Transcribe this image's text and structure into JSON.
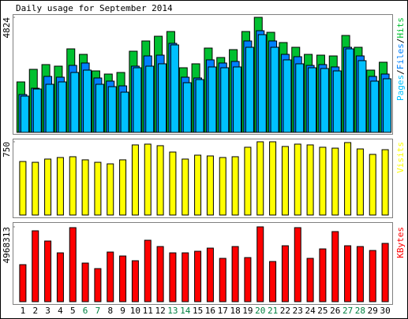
{
  "chart_data": [
    {
      "type": "bar",
      "title": "Daily usage for September 2014",
      "categories": [
        "1",
        "2",
        "3",
        "4",
        "5",
        "6",
        "7",
        "8",
        "9",
        "10",
        "11",
        "12",
        "13",
        "14",
        "15",
        "16",
        "17",
        "18",
        "19",
        "20",
        "21",
        "22",
        "23",
        "24",
        "25",
        "26",
        "27",
        "28",
        "29",
        "30"
      ],
      "highlight_indices": [
        5,
        6,
        12,
        13,
        19,
        20,
        26,
        27
      ],
      "highlight_color": "#008040",
      "legend_separator": "/",
      "ylim": [
        0,
        4824
      ],
      "yticks": [
        4824
      ],
      "series": [
        {
          "name": "Hits",
          "color": "#00c030",
          "values": [
            2115,
            2643,
            2842,
            2776,
            3502,
            3271,
            2577,
            2445,
            2511,
            3403,
            3833,
            4031,
            4229,
            2709,
            2875,
            3535,
            3139,
            3469,
            4229,
            4824,
            4196,
            3767,
            3568,
            3271,
            3238,
            3205,
            4064,
            3568,
            2610,
            2941
          ]
        },
        {
          "name": "Files",
          "color": "#0080ff",
          "values": [
            1586,
            1850,
            2346,
            2313,
            2808,
            2908,
            2280,
            2148,
            1949,
            2776,
            3205,
            3238,
            3734,
            2313,
            2280,
            3040,
            2908,
            2974,
            3833,
            4262,
            3833,
            3271,
            3172,
            2808,
            2842,
            2743,
            3568,
            3205,
            2346,
            2445
          ]
        },
        {
          "name": "Pages",
          "color": "#00c0ff",
          "values": [
            1520,
            1817,
            2016,
            2115,
            2511,
            2610,
            2016,
            1916,
            1685,
            2709,
            2776,
            2875,
            3668,
            2082,
            2214,
            2743,
            2709,
            2743,
            3568,
            4097,
            3568,
            3040,
            2875,
            2709,
            2677,
            2577,
            3502,
            3007,
            2148,
            2247
          ]
        }
      ]
    },
    {
      "type": "bar",
      "ylim": [
        0,
        750
      ],
      "yticks": [
        750
      ],
      "series": [
        {
          "name": "Visits",
          "color": "#ffff00",
          "values": [
            548,
            540,
            573,
            589,
            597,
            565,
            540,
            524,
            565,
            718,
            726,
            710,
            645,
            573,
            613,
            605,
            589,
            597,
            694,
            750,
            750,
            702,
            726,
            718,
            694,
            685,
            742,
            677,
            621,
            669
          ]
        }
      ]
    },
    {
      "type": "bar",
      "ylim": [
        0,
        4968313
      ],
      "yticks": [
        4968313
      ],
      "series": [
        {
          "name": "KBytes",
          "color": "#ff0000",
          "values": [
            2458000,
            4706800,
            4027000,
            3242000,
            4916000,
            2563000,
            2196000,
            3295000,
            3033000,
            2719000,
            4079000,
            3661000,
            3242000,
            3242000,
            3347000,
            3556000,
            2876000,
            3661000,
            2928000,
            4968313,
            2667000,
            3713000,
            4916000,
            2876000,
            3504000,
            4654000,
            3713000,
            3661000,
            3399000,
            3870000
          ]
        }
      ]
    }
  ]
}
